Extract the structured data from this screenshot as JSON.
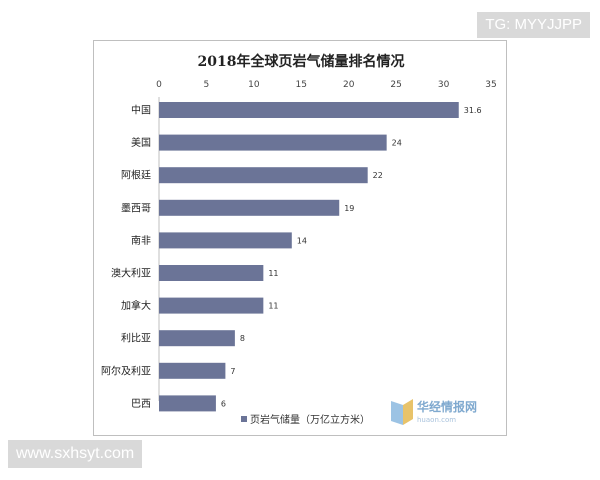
{
  "overlay": {
    "corner_tag": "TG: MYYJJPP",
    "site": "www.sxhsyt.com"
  },
  "watermark": {
    "brand": "华经情报网",
    "domain": "huaon.com"
  },
  "colors": {
    "bar": "#6b7497",
    "grid": "#d9d9d9",
    "frame": "#bfbfbf"
  },
  "chart_data": {
    "type": "bar",
    "orientation": "horizontal",
    "title": "2018年全球页岩气储量排名情况",
    "xlabel": "",
    "ylabel": "",
    "xlim": [
      0,
      35
    ],
    "ticks": [
      0,
      5,
      10,
      15,
      20,
      25,
      30,
      35
    ],
    "categories": [
      "中国",
      "美国",
      "阿根廷",
      "墨西哥",
      "南非",
      "澳大利亚",
      "加拿大",
      "利比亚",
      "阿尔及利亚",
      "巴西"
    ],
    "series": [
      {
        "name": "页岩气储量（万亿立方米）",
        "values": [
          31.6,
          24,
          22,
          19,
          14,
          11,
          11,
          8,
          7,
          6
        ]
      }
    ],
    "grid": false,
    "legend": "bottom",
    "axis_position": "top"
  }
}
